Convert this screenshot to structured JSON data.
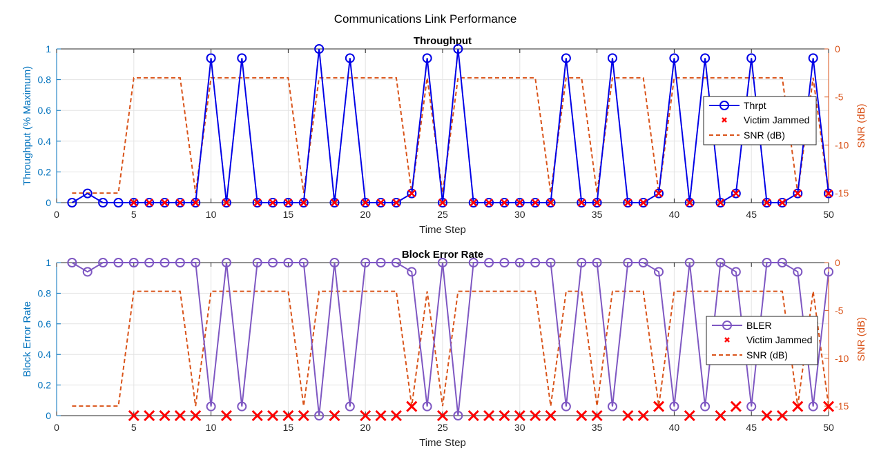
{
  "figure_title": "Communications Link Performance",
  "chart_data": [
    {
      "type": "line",
      "title": "Throughput",
      "xlabel": "Time Step",
      "ylabel": "Throughput (% Maximum)",
      "y2label": "SNR (dB)",
      "xlim": [
        0,
        50
      ],
      "ylim": [
        0,
        1
      ],
      "y2lim": [
        -16,
        0
      ],
      "xticks": [
        "0",
        "5",
        "10",
        "15",
        "20",
        "25",
        "30",
        "35",
        "40",
        "45",
        "50"
      ],
      "yticks": [
        "0",
        "0.2",
        "0.4",
        "0.6",
        "0.8",
        "1"
      ],
      "y2ticks": [
        "0",
        "-5",
        "-10",
        "-15"
      ],
      "grid": true,
      "legend_position": "right",
      "x": [
        1,
        2,
        3,
        4,
        5,
        6,
        7,
        8,
        9,
        10,
        11,
        12,
        13,
        14,
        15,
        16,
        17,
        18,
        19,
        20,
        21,
        22,
        23,
        24,
        25,
        26,
        27,
        28,
        29,
        30,
        31,
        32,
        33,
        34,
        35,
        36,
        37,
        38,
        39,
        40,
        41,
        42,
        43,
        44,
        45,
        46,
        47,
        48,
        49,
        50
      ],
      "series": [
        {
          "name": "Thrpt",
          "axis": "left",
          "color": "#0000E6",
          "style": "line-circle",
          "values": [
            0,
            0.06,
            0,
            0,
            0,
            0,
            0,
            0,
            0,
            0.94,
            0,
            0.94,
            0,
            0,
            0,
            0,
            1,
            0,
            0.94,
            0,
            0,
            0,
            0.06,
            0.94,
            0,
            1,
            0,
            0,
            0,
            0,
            0,
            0,
            0.94,
            0,
            0,
            0.94,
            0,
            0,
            0.06,
            0.94,
            0,
            0.94,
            0,
            0.06,
            0.94,
            0,
            0,
            0.06,
            0.94,
            0.06
          ]
        },
        {
          "name": "Victim Jammed",
          "axis": "left",
          "color": "#FF0000",
          "style": "x-marker",
          "x": [
            5,
            6,
            7,
            8,
            9,
            11,
            13,
            14,
            15,
            16,
            18,
            20,
            21,
            22,
            23,
            25,
            27,
            28,
            29,
            30,
            31,
            32,
            34,
            35,
            37,
            38,
            39,
            41,
            43,
            44,
            46,
            47,
            48,
            50
          ],
          "values": [
            0,
            0,
            0,
            0,
            0,
            0,
            0,
            0,
            0,
            0,
            0,
            0,
            0,
            0,
            0.06,
            0,
            0,
            0,
            0,
            0,
            0,
            0,
            0,
            0,
            0,
            0,
            0.06,
            0,
            0,
            0.06,
            0,
            0,
            0.06,
            0.06
          ]
        },
        {
          "name": "SNR (dB)",
          "axis": "right",
          "color": "#D95319",
          "style": "dashed",
          "values": [
            -15,
            -15,
            -15,
            -15,
            -3,
            -3,
            -3,
            -3,
            -15,
            -3,
            -3,
            -3,
            -3,
            -3,
            -3,
            -15,
            -3,
            -3,
            -3,
            -3,
            -3,
            -3,
            -15,
            -3,
            -15,
            -3,
            -3,
            -3,
            -3,
            -3,
            -3,
            -15,
            -3,
            -3,
            -15,
            -3,
            -3,
            -3,
            -15,
            -3,
            -3,
            -3,
            -3,
            -3,
            -3,
            -3,
            -3,
            -15,
            -3,
            -15
          ]
        }
      ]
    },
    {
      "type": "line",
      "title": "Block Error Rate",
      "xlabel": "Time Step",
      "ylabel": "Block Error Rate",
      "y2label": "SNR (dB)",
      "xlim": [
        0,
        50
      ],
      "ylim": [
        0,
        1
      ],
      "y2lim": [
        -16,
        0
      ],
      "xticks": [
        "0",
        "5",
        "10",
        "15",
        "20",
        "25",
        "30",
        "35",
        "40",
        "45",
        "50"
      ],
      "yticks": [
        "0",
        "0.2",
        "0.4",
        "0.6",
        "0.8",
        "1"
      ],
      "y2ticks": [
        "0",
        "-5",
        "-10",
        "-15"
      ],
      "grid": true,
      "legend_position": "right",
      "x": [
        1,
        2,
        3,
        4,
        5,
        6,
        7,
        8,
        9,
        10,
        11,
        12,
        13,
        14,
        15,
        16,
        17,
        18,
        19,
        20,
        21,
        22,
        23,
        24,
        25,
        26,
        27,
        28,
        29,
        30,
        31,
        32,
        33,
        34,
        35,
        36,
        37,
        38,
        39,
        40,
        41,
        42,
        43,
        44,
        45,
        46,
        47,
        48,
        49,
        50
      ],
      "series": [
        {
          "name": "BLER",
          "axis": "left",
          "color": "#7E57C2",
          "style": "line-circle",
          "values": [
            1,
            0.94,
            1,
            1,
            1,
            1,
            1,
            1,
            1,
            0.06,
            1,
            0.06,
            1,
            1,
            1,
            1,
            0,
            1,
            0.06,
            1,
            1,
            1,
            0.94,
            0.06,
            1,
            0,
            1,
            1,
            1,
            1,
            1,
            1,
            0.06,
            1,
            1,
            0.06,
            1,
            1,
            0.94,
            0.06,
            1,
            0.06,
            1,
            0.94,
            0.06,
            1,
            1,
            0.94,
            0.06,
            0.94
          ]
        },
        {
          "name": "Victim Jammed",
          "axis": "left",
          "color": "#FF0000",
          "style": "x-marker",
          "x": [
            5,
            6,
            7,
            8,
            9,
            11,
            13,
            14,
            15,
            16,
            18,
            20,
            21,
            22,
            23,
            25,
            27,
            28,
            29,
            30,
            31,
            32,
            34,
            35,
            37,
            38,
            39,
            41,
            43,
            44,
            46,
            47,
            48,
            50
          ],
          "values": [
            0,
            0,
            0,
            0,
            0,
            0,
            0,
            0,
            0,
            0,
            0,
            0,
            0,
            0,
            0.06,
            0,
            0,
            0,
            0,
            0,
            0,
            0,
            0,
            0,
            0,
            0,
            0.06,
            0,
            0,
            0.06,
            0,
            0,
            0.06,
            0.06
          ]
        },
        {
          "name": "SNR (dB)",
          "axis": "right",
          "color": "#D95319",
          "style": "dashed",
          "values": [
            -15,
            -15,
            -15,
            -15,
            -3,
            -3,
            -3,
            -3,
            -15,
            -3,
            -3,
            -3,
            -3,
            -3,
            -3,
            -15,
            -3,
            -3,
            -3,
            -3,
            -3,
            -3,
            -15,
            -3,
            -15,
            -3,
            -3,
            -3,
            -3,
            -3,
            -3,
            -15,
            -3,
            -3,
            -15,
            -3,
            -3,
            -3,
            -15,
            -3,
            -3,
            -3,
            -3,
            -3,
            -3,
            -3,
            -3,
            -15,
            -3,
            -15
          ]
        }
      ]
    }
  ]
}
